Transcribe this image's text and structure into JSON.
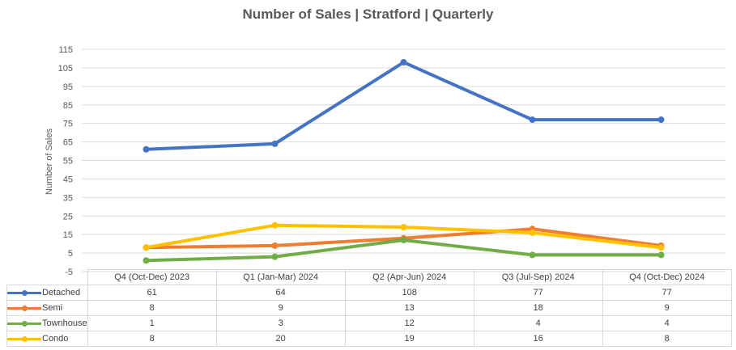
{
  "chart_data": {
    "type": "line",
    "title": "Number of Sales | Stratford | Quarterly",
    "xlabel": "",
    "ylabel": "Number of Sales",
    "ylim": [
      -5,
      115
    ],
    "yticks": [
      115,
      105,
      95,
      85,
      75,
      65,
      55,
      45,
      35,
      25,
      15,
      5,
      -5
    ],
    "grid": true,
    "legend": "data-table-bottom",
    "categories": [
      "Q4 (Oct-Dec) 2023",
      "Q1 (Jan-Mar) 2024",
      "Q2 (Apr-Jun) 2024",
      "Q3 (Jul-Sep) 2024",
      "Q4 (Oct-Dec) 2024"
    ],
    "series": [
      {
        "name": "Detached",
        "color": "#4472c4",
        "values": [
          61,
          64,
          108,
          77,
          77
        ]
      },
      {
        "name": "Semi",
        "color": "#ed7d31",
        "values": [
          8,
          9,
          13,
          18,
          9
        ]
      },
      {
        "name": "Townhouse",
        "color": "#70ad47",
        "values": [
          1,
          3,
          12,
          4,
          4
        ]
      },
      {
        "name": "Condo",
        "color": "#ffc000",
        "values": [
          8,
          20,
          19,
          16,
          8
        ]
      }
    ]
  }
}
